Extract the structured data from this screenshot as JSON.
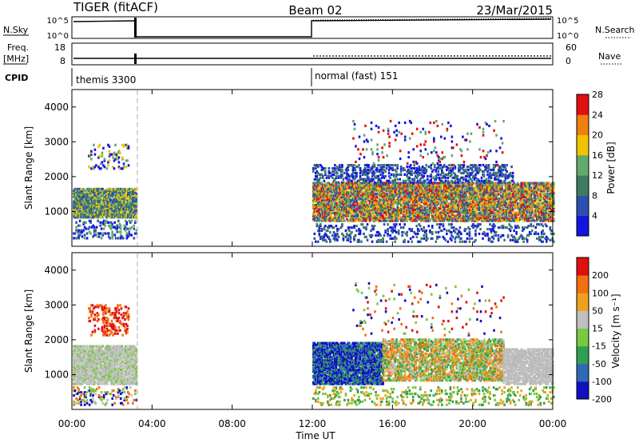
{
  "header": {
    "radar": "TIGER (fitACF)",
    "beam": "Beam 02",
    "date": "23/Mar/2015"
  },
  "params_panel": {
    "nsky_label": "N.Sky",
    "nsearch_label": "N.Search",
    "freq_label_line1": "Freq.",
    "freq_label_line2": "[MHz]",
    "nave_label": "Nave",
    "cpid_label": "CPID",
    "left_ticks_top": [
      "10^5",
      "10^0"
    ],
    "right_ticks_top": [
      "10^5",
      "10^0"
    ],
    "left_ticks_freq": [
      "18",
      "8"
    ],
    "right_ticks_nave": [
      "60",
      "0"
    ],
    "cpid_segments": [
      {
        "label": "themis 3300",
        "start_hour": 0,
        "end_hour": 12
      },
      {
        "label": "normal (fast) 151",
        "start_hour": 12,
        "end_hour": 24
      }
    ]
  },
  "chart_data": [
    {
      "type": "heatmap",
      "ylabel": "Slant Range [km]",
      "xlabel": "Time UT",
      "x_ticks": [
        "00:00",
        "04:00",
        "08:00",
        "12:00",
        "16:00",
        "20:00",
        "00:00"
      ],
      "xlim_hours": [
        0,
        24
      ],
      "y_ticks": [
        "1000",
        "2000",
        "3000",
        "4000"
      ],
      "ylim": [
        0,
        4500
      ],
      "colorbar": {
        "label": "Power [dB]",
        "ticks": [
          "4",
          "8",
          "12",
          "16",
          "20",
          "24",
          "28"
        ],
        "colors": [
          "#1414e0",
          "#2d4fb0",
          "#3d7c60",
          "#63a96a",
          "#f0c400",
          "#f08010",
          "#e01010"
        ]
      },
      "data_gap_hours": [
        3.2,
        12.0
      ],
      "marker_hour": 3.6
    },
    {
      "type": "heatmap",
      "ylabel": "Slant Range [km]",
      "xlabel": "Time UT",
      "x_ticks": [
        "00:00",
        "04:00",
        "08:00",
        "12:00",
        "16:00",
        "20:00",
        "00:00"
      ],
      "xlim_hours": [
        0,
        24
      ],
      "y_ticks": [
        "1000",
        "2000",
        "3000",
        "4000"
      ],
      "ylim": [
        0,
        4500
      ],
      "colorbar": {
        "label": "Velocity [m s⁻¹]",
        "ticks": [
          "200",
          "100",
          "50",
          "15",
          "-15",
          "-50",
          "-100",
          "-200"
        ],
        "colors": [
          "#1010c0",
          "#3068b8",
          "#30a050",
          "#78c840",
          "#c0c0c0",
          "#f0a020",
          "#f07010",
          "#e01010"
        ]
      },
      "data_gap_hours": [
        3.2,
        12.0
      ],
      "marker_hour": 3.6
    }
  ],
  "footer": {
    "x_title": "Time UT"
  }
}
